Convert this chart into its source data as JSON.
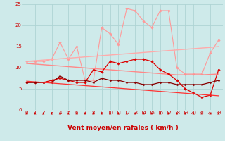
{
  "background_color": "#ceeaea",
  "grid_color": "#aed4d4",
  "xlabel": "Vent moyen/en rafales ( km/h )",
  "xlim": [
    -0.5,
    23.5
  ],
  "ylim": [
    0,
    25
  ],
  "yticks": [
    0,
    5,
    10,
    15,
    20,
    25
  ],
  "xticks": [
    0,
    1,
    2,
    3,
    4,
    5,
    6,
    7,
    8,
    9,
    10,
    11,
    12,
    13,
    14,
    15,
    16,
    17,
    18,
    19,
    20,
    21,
    22,
    23
  ],
  "series": [
    {
      "name": "light_pink_jagged",
      "color": "#ff9999",
      "lw": 0.8,
      "marker": "D",
      "ms": 1.8,
      "y": [
        11.5,
        11.5,
        11.5,
        12.0,
        16.0,
        12.0,
        15.0,
        7.0,
        7.0,
        19.5,
        18.0,
        15.5,
        24.0,
        23.5,
        21.0,
        19.5,
        23.5,
        23.5,
        10.0,
        8.5,
        8.5,
        8.5,
        13.5,
        16.5
      ]
    },
    {
      "name": "light_pink_trend1",
      "color": "#ffaaaa",
      "lw": 1.0,
      "marker": null,
      "ms": 0,
      "y": [
        11.5,
        11.65,
        11.8,
        11.95,
        12.1,
        12.25,
        12.4,
        12.55,
        12.7,
        12.85,
        13.0,
        13.15,
        13.3,
        13.45,
        13.6,
        13.75,
        13.9,
        14.05,
        14.2,
        14.35,
        14.5,
        14.65,
        14.8,
        15.0
      ]
    },
    {
      "name": "pink_trend2",
      "color": "#ff8888",
      "lw": 1.0,
      "marker": null,
      "ms": 0,
      "y": [
        11.0,
        10.85,
        10.7,
        10.55,
        10.4,
        10.25,
        10.1,
        9.95,
        9.8,
        9.65,
        9.5,
        9.35,
        9.2,
        9.05,
        8.9,
        8.75,
        8.6,
        8.45,
        8.3,
        8.3,
        8.3,
        8.3,
        8.4,
        8.5
      ]
    },
    {
      "name": "red_jagged",
      "color": "#dd0000",
      "lw": 0.9,
      "marker": "D",
      "ms": 1.8,
      "y": [
        6.5,
        6.5,
        6.5,
        7.0,
        7.5,
        7.0,
        6.5,
        6.5,
        9.5,
        9.0,
        11.5,
        11.0,
        11.5,
        12.0,
        12.0,
        11.5,
        9.5,
        8.5,
        7.0,
        5.0,
        4.0,
        3.0,
        3.5,
        9.5
      ]
    },
    {
      "name": "dark_red_flat",
      "color": "#880000",
      "lw": 0.9,
      "marker": "D",
      "ms": 1.5,
      "y": [
        6.5,
        6.5,
        6.5,
        6.5,
        8.0,
        7.0,
        7.0,
        7.0,
        6.5,
        7.5,
        7.0,
        7.0,
        6.5,
        6.5,
        6.0,
        6.0,
        6.5,
        6.5,
        6.0,
        6.0,
        6.0,
        6.0,
        6.5,
        7.0
      ]
    },
    {
      "name": "red_declining",
      "color": "#ff3333",
      "lw": 0.9,
      "marker": null,
      "ms": 0,
      "y": [
        6.8,
        6.65,
        6.5,
        6.35,
        6.2,
        6.05,
        5.9,
        5.75,
        5.6,
        5.45,
        5.3,
        5.15,
        5.0,
        4.85,
        4.7,
        4.55,
        4.4,
        4.25,
        4.1,
        3.95,
        3.8,
        3.65,
        3.5,
        3.35
      ]
    }
  ],
  "arrow_color": "#cc0000",
  "label_color": "#cc0000",
  "tick_fontsize": 5.0,
  "xlabel_fontsize": 6.5
}
